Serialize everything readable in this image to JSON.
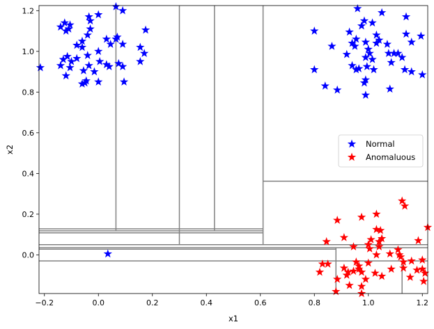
{
  "chart_data": {
    "type": "scatter",
    "title": "",
    "xlabel": "x1",
    "ylabel": "x2",
    "xlim": [
      -0.22,
      1.22
    ],
    "ylim": [
      -0.19,
      1.225
    ],
    "xticks": [
      -0.2,
      0.0,
      0.2,
      0.4,
      0.6,
      0.8,
      1.0,
      1.2
    ],
    "yticks": [
      0.0,
      0.2,
      0.4,
      0.6,
      0.8,
      1.0,
      1.2
    ],
    "xtick_labels": [
      "−0.2",
      "0.0",
      "0.2",
      "0.4",
      "0.6",
      "0.8",
      "1.0",
      "1.2"
    ],
    "ytick_labels": [
      "0.0",
      "0.2",
      "0.4",
      "0.6",
      "0.8",
      "1.0",
      "1.2"
    ],
    "legend_position": "center-right",
    "series": [
      {
        "name": "Normal",
        "color": "#0000ff",
        "marker": "star",
        "points": [
          [
            -0.215,
            0.92
          ],
          [
            0.065,
            1.22
          ],
          [
            0.09,
            1.2
          ],
          [
            -0.035,
            1.17
          ],
          [
            -0.03,
            1.15
          ],
          [
            0.0,
            1.18
          ],
          [
            -0.125,
            1.14
          ],
          [
            -0.14,
            1.12
          ],
          [
            -0.105,
            1.13
          ],
          [
            -0.12,
            1.1
          ],
          [
            -0.11,
            1.11
          ],
          [
            -0.03,
            1.11
          ],
          [
            0.175,
            1.105
          ],
          [
            -0.04,
            1.08
          ],
          [
            0.03,
            1.06
          ],
          [
            0.07,
            1.07
          ],
          [
            0.065,
            1.06
          ],
          [
            -0.06,
            1.05
          ],
          [
            -0.08,
            1.03
          ],
          [
            -0.06,
            1.02
          ],
          [
            0.045,
            1.035
          ],
          [
            0.09,
            1.035
          ],
          [
            0.155,
            1.02
          ],
          [
            0.0,
            1.0
          ],
          [
            0.17,
            0.99
          ],
          [
            -0.04,
            0.98
          ],
          [
            -0.115,
            0.975
          ],
          [
            -0.08,
            0.965
          ],
          [
            -0.1,
            0.95
          ],
          [
            -0.13,
            0.96
          ],
          [
            -0.14,
            0.93
          ],
          [
            0.005,
            0.95
          ],
          [
            0.155,
            0.95
          ],
          [
            0.075,
            0.94
          ],
          [
            -0.105,
            0.92
          ],
          [
            -0.035,
            0.93
          ],
          [
            0.03,
            0.935
          ],
          [
            0.09,
            0.925
          ],
          [
            0.04,
            0.925
          ],
          [
            -0.055,
            0.905
          ],
          [
            -0.015,
            0.9
          ],
          [
            -0.12,
            0.88
          ],
          [
            -0.045,
            0.855
          ],
          [
            -0.05,
            0.845
          ],
          [
            -0.06,
            0.84
          ],
          [
            0.0,
            0.85
          ],
          [
            0.095,
            0.85
          ],
          [
            0.035,
            0.005
          ],
          [
            0.96,
            1.21
          ],
          [
            1.05,
            1.19
          ],
          [
            1.14,
            1.17
          ],
          [
            0.985,
            1.15
          ],
          [
            0.8,
            1.1
          ],
          [
            0.93,
            1.095
          ],
          [
            0.975,
            1.125
          ],
          [
            1.015,
            1.14
          ],
          [
            1.03,
            1.08
          ],
          [
            1.14,
            1.085
          ],
          [
            1.195,
            1.075
          ],
          [
            1.04,
            1.055
          ],
          [
            0.955,
            1.06
          ],
          [
            0.94,
            1.04
          ],
          [
            0.99,
            1.045
          ],
          [
            1.03,
            1.04
          ],
          [
            1.07,
            1.035
          ],
          [
            1.16,
            1.045
          ],
          [
            0.865,
            1.025
          ],
          [
            0.95,
            1.025
          ],
          [
            1.0,
            1.01
          ],
          [
            1.005,
            0.99
          ],
          [
            0.92,
            0.985
          ],
          [
            1.075,
            0.99
          ],
          [
            1.095,
            0.99
          ],
          [
            1.11,
            0.99
          ],
          [
            1.125,
            0.97
          ],
          [
            1.015,
            0.96
          ],
          [
            0.99,
            0.97
          ],
          [
            1.085,
            0.945
          ],
          [
            0.94,
            0.93
          ],
          [
            0.965,
            0.915
          ],
          [
            0.955,
            0.91
          ],
          [
            0.995,
            0.925
          ],
          [
            1.02,
            0.91
          ],
          [
            0.8,
            0.91
          ],
          [
            1.135,
            0.91
          ],
          [
            1.16,
            0.9
          ],
          [
            1.2,
            0.885
          ],
          [
            0.99,
            0.86
          ],
          [
            0.985,
            0.845
          ],
          [
            0.84,
            0.83
          ],
          [
            1.08,
            0.815
          ],
          [
            0.885,
            0.81
          ],
          [
            0.99,
            0.785
          ]
        ]
      },
      {
        "name": "Anomaluous",
        "color": "#ff0000",
        "marker": "star",
        "points": [
          [
            1.125,
            0.265
          ],
          [
            1.135,
            0.24
          ],
          [
            1.03,
            0.2
          ],
          [
            0.975,
            0.185
          ],
          [
            0.885,
            0.17
          ],
          [
            1.22,
            0.135
          ],
          [
            1.03,
            0.125
          ],
          [
            1.045,
            0.12
          ],
          [
            1.05,
            0.08
          ],
          [
            1.01,
            0.075
          ],
          [
            0.91,
            0.085
          ],
          [
            0.845,
            0.065
          ],
          [
            1.04,
            0.065
          ],
          [
            1.185,
            0.07
          ],
          [
            1.0,
            0.05
          ],
          [
            1.04,
            0.04
          ],
          [
            1.11,
            0.025
          ],
          [
            1.005,
            0.03
          ],
          [
            0.945,
            0.04
          ],
          [
            1.115,
            0.0
          ],
          [
            1.03,
            0.0
          ],
          [
            1.08,
            0.005
          ],
          [
            1.12,
            -0.01
          ],
          [
            1.2,
            -0.025
          ],
          [
            1.16,
            -0.03
          ],
          [
            1.13,
            -0.035
          ],
          [
            0.955,
            -0.035
          ],
          [
            1.0,
            -0.04
          ],
          [
            0.83,
            -0.045
          ],
          [
            0.85,
            -0.045
          ],
          [
            0.965,
            -0.055
          ],
          [
            0.965,
            -0.07
          ],
          [
            0.91,
            -0.065
          ],
          [
            1.13,
            -0.065
          ],
          [
            1.085,
            -0.07
          ],
          [
            1.2,
            -0.07
          ],
          [
            1.18,
            -0.075
          ],
          [
            0.925,
            -0.085
          ],
          [
            0.945,
            -0.08
          ],
          [
            0.975,
            -0.085
          ],
          [
            0.82,
            -0.085
          ],
          [
            1.21,
            -0.09
          ],
          [
            1.025,
            -0.09
          ],
          [
            0.92,
            -0.1
          ],
          [
            1.05,
            -0.105
          ],
          [
            1.155,
            -0.11
          ],
          [
            0.885,
            -0.12
          ],
          [
            0.99,
            -0.12
          ],
          [
            1.205,
            -0.13
          ],
          [
            0.93,
            -0.15
          ],
          [
            0.975,
            -0.155
          ],
          [
            0.88,
            -0.18
          ],
          [
            0.975,
            -0.19
          ]
        ]
      }
    ],
    "partition_lines": [
      {
        "orientation": "vertical",
        "x": 0.065,
        "y_from": 0.12,
        "y_to": 1.225
      },
      {
        "orientation": "vertical",
        "x": 0.3,
        "y_from": 0.05,
        "y_to": 1.225
      },
      {
        "orientation": "vertical",
        "x": 0.43,
        "y_from": 0.12,
        "y_to": 1.225
      },
      {
        "orientation": "vertical",
        "x": 0.61,
        "y_from": 0.05,
        "y_to": 1.225
      },
      {
        "orientation": "vertical",
        "x": 0.88,
        "y_from": -0.19,
        "y_to": 0.035
      },
      {
        "orientation": "vertical",
        "x": 1.125,
        "y_from": -0.19,
        "y_to": -0.03
      },
      {
        "orientation": "horizontal",
        "y": 0.362,
        "x_from": 0.61,
        "x_to": 1.22
      },
      {
        "orientation": "horizontal",
        "y": 0.128,
        "x_from": -0.22,
        "x_to": 0.61
      },
      {
        "orientation": "horizontal",
        "y": 0.118,
        "x_from": -0.22,
        "x_to": 0.61
      },
      {
        "orientation": "horizontal",
        "y": 0.108,
        "x_from": -0.22,
        "x_to": 0.61
      },
      {
        "orientation": "horizontal",
        "y": 0.05,
        "x_from": -0.22,
        "x_to": 1.22
      },
      {
        "orientation": "horizontal",
        "y": 0.035,
        "x_from": -0.22,
        "x_to": 1.22
      },
      {
        "orientation": "horizontal",
        "y": 0.028,
        "x_from": -0.22,
        "x_to": 0.88
      },
      {
        "orientation": "horizontal",
        "y": -0.03,
        "x_from": -0.22,
        "x_to": 1.22
      }
    ]
  }
}
